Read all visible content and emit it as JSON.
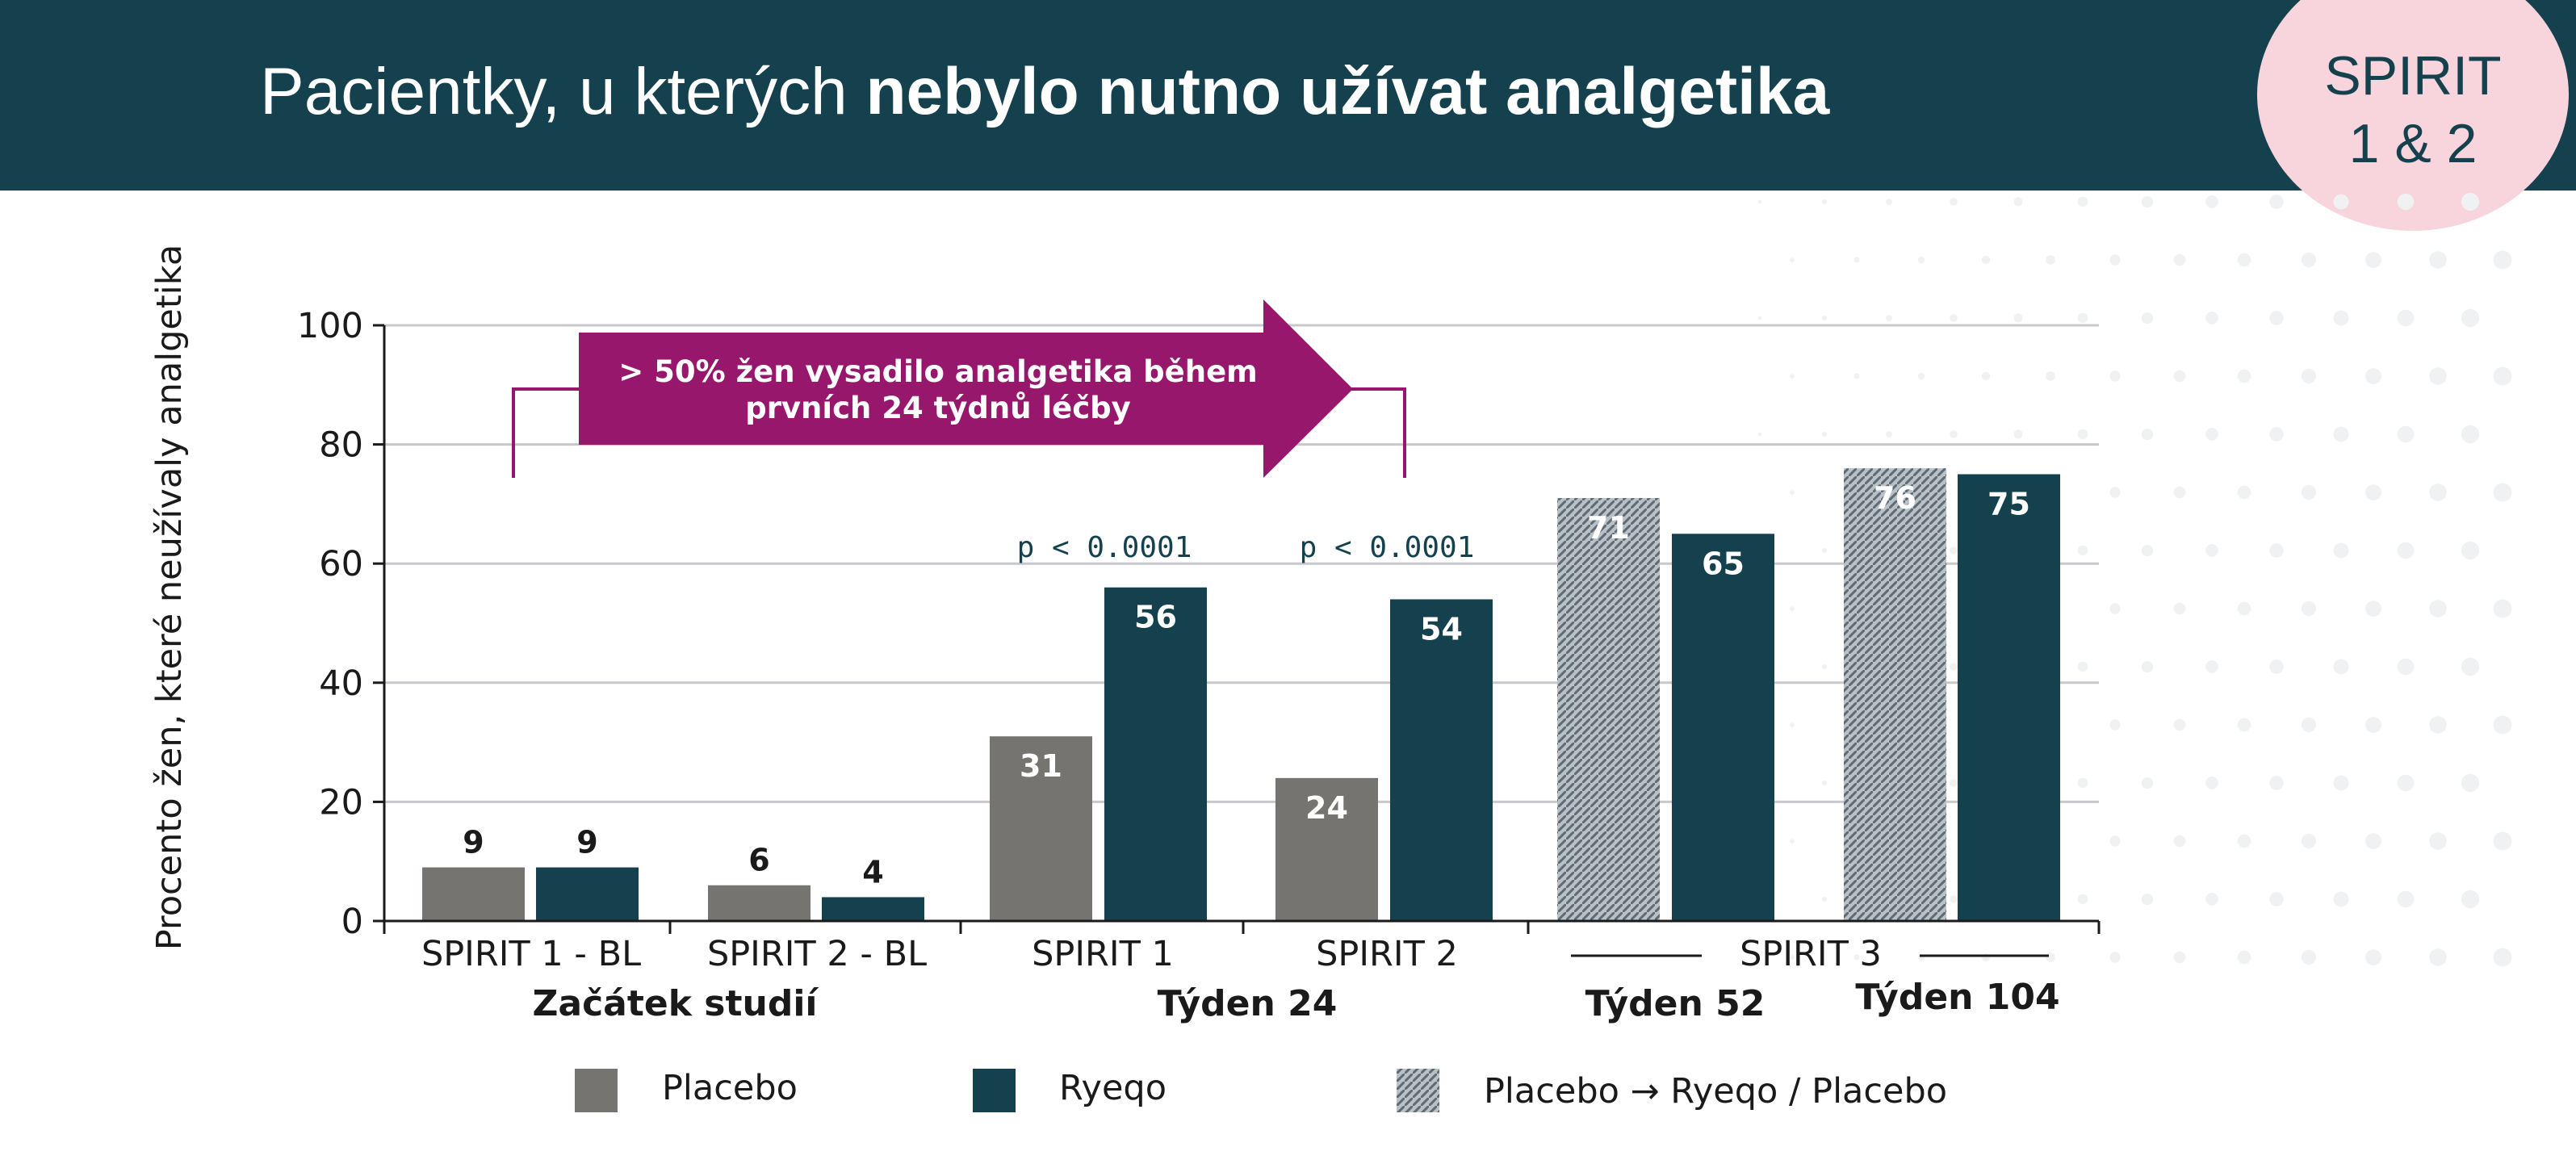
{
  "header": {
    "title_normal": "Pacientky, u kterých ",
    "title_bold": "nebylo nutno užívat analgetika",
    "badge_line1": "SPIRIT",
    "badge_line2": "1 & 2"
  },
  "colors": {
    "header_bg": "#15414f",
    "badge_bg": "#f8d5dc",
    "placebo": "#767471",
    "ryeqo": "#15414f",
    "switch_pattern": "#9aa3a8",
    "annotation_arrow": "#97176d",
    "grid": "#c8c8cc"
  },
  "chart_data": {
    "type": "bar",
    "ylabel": "Procento žen, které neužívaly analgetika",
    "ylim": [
      0,
      100
    ],
    "yticks": [
      0,
      20,
      40,
      60,
      80,
      100
    ],
    "grid": true,
    "categories": [
      "SPIRIT 1 - BL",
      "SPIRIT 2 - BL",
      "SPIRIT 1",
      "SPIRIT 2",
      "SPIRIT 3 (Týden 52)",
      "SPIRIT 3 (Týden 104)"
    ],
    "series": [
      {
        "name": "Placebo",
        "values": [
          9,
          6,
          31,
          24,
          null,
          null
        ]
      },
      {
        "name": "Ryeqo",
        "values": [
          9,
          4,
          56,
          54,
          65,
          75
        ]
      },
      {
        "name": "Placebo → Ryeqo / Placebo",
        "values": [
          null,
          null,
          null,
          null,
          71,
          76
        ]
      }
    ],
    "x_tick_labels": [
      "SPIRIT 1 - BL",
      "SPIRIT 2 - BL",
      "SPIRIT 1",
      "SPIRIT 2",
      "SPIRIT 3"
    ],
    "x_group_labels": [
      "Začátek studií",
      "Týden 24",
      "Týden 52",
      "Týden 104"
    ],
    "p_values": [
      "p < 0.0001",
      "p < 0.0001"
    ],
    "annotation": {
      "line1": "> 50% žen vysadilo analgetika během",
      "line2": "prvních 24 týdnů léčby"
    },
    "legend": {
      "placement": "bottom",
      "items": [
        "Placebo",
        "Ryeqo",
        "Placebo → Ryeqo / Placebo"
      ]
    }
  }
}
